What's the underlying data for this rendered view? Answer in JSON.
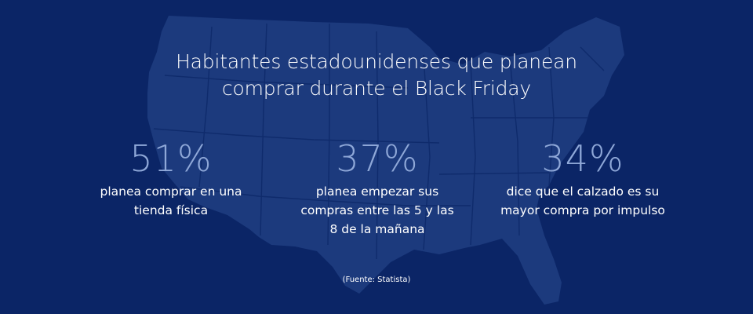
{
  "title": {
    "line1": "Habitantes estadounidenses que planean",
    "line2": "comprar durante el Black Friday"
  },
  "stats": [
    {
      "value": "51%",
      "lines": [
        "planea comprar en una",
        "tienda física"
      ]
    },
    {
      "value": "37%",
      "lines": [
        "planea empezar sus",
        "compras entre las 5 y las",
        "8 de la mañana"
      ]
    },
    {
      "value": "34%",
      "lines": [
        "dice que el calzado es su",
        "mayor compra por impulso"
      ]
    }
  ],
  "source": "(Fuente: Statista)",
  "colors": {
    "background": "#0b2566",
    "map": "#1c3a7d",
    "map_borders": "#0f2b6c",
    "stat_number": "#8fa8d8",
    "text": "#ffffff"
  }
}
